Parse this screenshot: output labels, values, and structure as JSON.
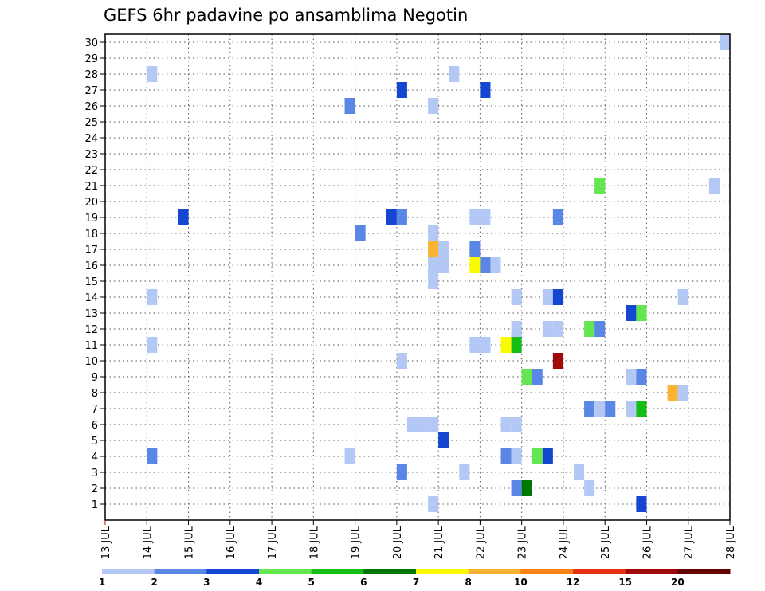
{
  "chart_data": {
    "type": "heatmap",
    "title": "GEFS 6hr padavine po ansamblima Negotin",
    "xlabel": "",
    "ylabel": "",
    "x_ticks": [
      "13 JUL",
      "14 JUL",
      "15 JUL",
      "16 JUL",
      "17 JUL",
      "18 JUL",
      "19 JUL",
      "20 JUL",
      "21 JUL",
      "22 JUL",
      "23 JUL",
      "24 JUL",
      "25 JUL",
      "26 JUL",
      "27 JUL",
      "28 JUL"
    ],
    "y_ticks": [
      "1",
      "2",
      "3",
      "4",
      "5",
      "6",
      "7",
      "8",
      "9",
      "10",
      "11",
      "12",
      "13",
      "14",
      "15",
      "16",
      "17",
      "18",
      "19",
      "20",
      "21",
      "22",
      "23",
      "24",
      "25",
      "26",
      "27",
      "28",
      "29",
      "30"
    ],
    "x_range": [
      "13 JUL 00z",
      "28 JUL 00z"
    ],
    "time_step_hours": 6,
    "y_range": [
      1,
      30
    ],
    "grid": "dotted",
    "legend_position": "bottom",
    "legend": {
      "labels": [
        "1",
        "2",
        "3",
        "4",
        "5",
        "6",
        "7",
        "8",
        "10",
        "12",
        "15",
        "20"
      ],
      "colors": [
        "#b4c8f5",
        "#5a87e6",
        "#1446d2",
        "#64e650",
        "#14be14",
        "#007800",
        "#fafa00",
        "#fab432",
        "#fa8214",
        "#e63214",
        "#a00a0a",
        "#640000"
      ]
    },
    "cells": [
      {
        "day": "14 JUL",
        "step": 0,
        "member": 28,
        "color": "#b4c8f5"
      },
      {
        "day": "14 JUL",
        "step": 0,
        "member": 14,
        "color": "#b4c8f5"
      },
      {
        "day": "14 JUL",
        "step": 0,
        "member": 11,
        "color": "#b4c8f5"
      },
      {
        "day": "14 JUL",
        "step": 0,
        "member": 4,
        "color": "#5a87e6"
      },
      {
        "day": "14 JUL",
        "step": 3,
        "member": 19,
        "color": "#1446d2"
      },
      {
        "day": "18 JUL",
        "step": 3,
        "member": 26,
        "color": "#5a87e6"
      },
      {
        "day": "18 JUL",
        "step": 3,
        "member": 4,
        "color": "#b4c8f5"
      },
      {
        "day": "19 JUL",
        "step": 0,
        "member": 18,
        "color": "#5a87e6"
      },
      {
        "day": "19 JUL",
        "step": 3,
        "member": 19,
        "color": "#1446d2"
      },
      {
        "day": "20 JUL",
        "step": 0,
        "member": 27,
        "color": "#1446d2"
      },
      {
        "day": "20 JUL",
        "step": 0,
        "member": 19,
        "color": "#5a87e6"
      },
      {
        "day": "20 JUL",
        "step": 0,
        "member": 10,
        "color": "#b4c8f5"
      },
      {
        "day": "20 JUL",
        "step": 0,
        "member": 3,
        "color": "#5a87e6"
      },
      {
        "day": "20 JUL",
        "step": 1,
        "member": 6,
        "color": "#b4c8f5"
      },
      {
        "day": "20 JUL",
        "step": 2,
        "member": 6,
        "color": "#b4c8f5"
      },
      {
        "day": "20 JUL",
        "step": 3,
        "member": 26,
        "color": "#b4c8f5"
      },
      {
        "day": "20 JUL",
        "step": 3,
        "member": 18,
        "color": "#b4c8f5"
      },
      {
        "day": "20 JUL",
        "step": 3,
        "member": 17,
        "color": "#fab432"
      },
      {
        "day": "20 JUL",
        "step": 3,
        "member": 16,
        "color": "#b4c8f5"
      },
      {
        "day": "20 JUL",
        "step": 3,
        "member": 15,
        "color": "#b4c8f5"
      },
      {
        "day": "20 JUL",
        "step": 3,
        "member": 6,
        "color": "#b4c8f5"
      },
      {
        "day": "20 JUL",
        "step": 3,
        "member": 1,
        "color": "#b4c8f5"
      },
      {
        "day": "21 JUL",
        "step": 0,
        "member": 17,
        "color": "#b4c8f5"
      },
      {
        "day": "21 JUL",
        "step": 0,
        "member": 16,
        "color": "#b4c8f5"
      },
      {
        "day": "21 JUL",
        "step": 0,
        "member": 5,
        "color": "#1446d2"
      },
      {
        "day": "21 JUL",
        "step": 1,
        "member": 28,
        "color": "#b4c8f5"
      },
      {
        "day": "21 JUL",
        "step": 2,
        "member": 3,
        "color": "#b4c8f5"
      },
      {
        "day": "21 JUL",
        "step": 3,
        "member": 19,
        "color": "#b4c8f5"
      },
      {
        "day": "21 JUL",
        "step": 3,
        "member": 17,
        "color": "#5a87e6"
      },
      {
        "day": "21 JUL",
        "step": 3,
        "member": 16,
        "color": "#fafa00"
      },
      {
        "day": "21 JUL",
        "step": 3,
        "member": 11,
        "color": "#b4c8f5"
      },
      {
        "day": "22 JUL",
        "step": 0,
        "member": 27,
        "color": "#1446d2"
      },
      {
        "day": "22 JUL",
        "step": 0,
        "member": 19,
        "color": "#b4c8f5"
      },
      {
        "day": "22 JUL",
        "step": 0,
        "member": 16,
        "color": "#5a87e6"
      },
      {
        "day": "22 JUL",
        "step": 0,
        "member": 11,
        "color": "#b4c8f5"
      },
      {
        "day": "22 JUL",
        "step": 1,
        "member": 16,
        "color": "#b4c8f5"
      },
      {
        "day": "22 JUL",
        "step": 2,
        "member": 11,
        "color": "#fafa00"
      },
      {
        "day": "22 JUL",
        "step": 2,
        "member": 6,
        "color": "#b4c8f5"
      },
      {
        "day": "22 JUL",
        "step": 2,
        "member": 4,
        "color": "#5a87e6"
      },
      {
        "day": "22 JUL",
        "step": 3,
        "member": 14,
        "color": "#b4c8f5"
      },
      {
        "day": "22 JUL",
        "step": 3,
        "member": 12,
        "color": "#b4c8f5"
      },
      {
        "day": "22 JUL",
        "step": 3,
        "member": 11,
        "color": "#14be14"
      },
      {
        "day": "22 JUL",
        "step": 3,
        "member": 6,
        "color": "#b4c8f5"
      },
      {
        "day": "22 JUL",
        "step": 3,
        "member": 4,
        "color": "#b4c8f5"
      },
      {
        "day": "22 JUL",
        "step": 3,
        "member": 2,
        "color": "#5a87e6"
      },
      {
        "day": "23 JUL",
        "step": 0,
        "member": 9,
        "color": "#64e650"
      },
      {
        "day": "23 JUL",
        "step": 0,
        "member": 2,
        "color": "#007800"
      },
      {
        "day": "23 JUL",
        "step": 1,
        "member": 9,
        "color": "#5a87e6"
      },
      {
        "day": "23 JUL",
        "step": 1,
        "member": 4,
        "color": "#64e650"
      },
      {
        "day": "23 JUL",
        "step": 2,
        "member": 14,
        "color": "#b4c8f5"
      },
      {
        "day": "23 JUL",
        "step": 2,
        "member": 12,
        "color": "#b4c8f5"
      },
      {
        "day": "23 JUL",
        "step": 2,
        "member": 4,
        "color": "#1446d2"
      },
      {
        "day": "23 JUL",
        "step": 3,
        "member": 14,
        "color": "#1446d2"
      },
      {
        "day": "23 JUL",
        "step": 3,
        "member": 12,
        "color": "#b4c8f5"
      },
      {
        "day": "23 JUL",
        "step": 3,
        "member": 10,
        "color": "#a00a0a"
      },
      {
        "day": "23 JUL",
        "step": 3,
        "member": 19,
        "color": "#5a87e6"
      },
      {
        "day": "24 JUL",
        "step": 1,
        "member": 3,
        "color": "#b4c8f5"
      },
      {
        "day": "24 JUL",
        "step": 2,
        "member": 12,
        "color": "#64e650"
      },
      {
        "day": "24 JUL",
        "step": 2,
        "member": 7,
        "color": "#5a87e6"
      },
      {
        "day": "24 JUL",
        "step": 2,
        "member": 2,
        "color": "#b4c8f5"
      },
      {
        "day": "24 JUL",
        "step": 3,
        "member": 21,
        "color": "#64e650"
      },
      {
        "day": "24 JUL",
        "step": 3,
        "member": 12,
        "color": "#5a87e6"
      },
      {
        "day": "24 JUL",
        "step": 3,
        "member": 7,
        "color": "#b4c8f5"
      },
      {
        "day": "25 JUL",
        "step": 0,
        "member": 7,
        "color": "#5a87e6"
      },
      {
        "day": "25 JUL",
        "step": 2,
        "member": 13,
        "color": "#1446d2"
      },
      {
        "day": "25 JUL",
        "step": 2,
        "member": 9,
        "color": "#b4c8f5"
      },
      {
        "day": "25 JUL",
        "step": 2,
        "member": 7,
        "color": "#b4c8f5"
      },
      {
        "day": "25 JUL",
        "step": 3,
        "member": 13,
        "color": "#64e650"
      },
      {
        "day": "25 JUL",
        "step": 3,
        "member": 9,
        "color": "#5a87e6"
      },
      {
        "day": "25 JUL",
        "step": 3,
        "member": 7,
        "color": "#14be14"
      },
      {
        "day": "25 JUL",
        "step": 3,
        "member": 1,
        "color": "#1446d2"
      },
      {
        "day": "26 JUL",
        "step": 2,
        "member": 8,
        "color": "#fab432"
      },
      {
        "day": "26 JUL",
        "step": 3,
        "member": 14,
        "color": "#b4c8f5"
      },
      {
        "day": "26 JUL",
        "step": 3,
        "member": 8,
        "color": "#b4c8f5"
      },
      {
        "day": "27 JUL",
        "step": 2,
        "member": 21,
        "color": "#b4c8f5"
      },
      {
        "day": "27 JUL",
        "step": 3,
        "member": 30,
        "color": "#b4c8f5"
      }
    ]
  }
}
